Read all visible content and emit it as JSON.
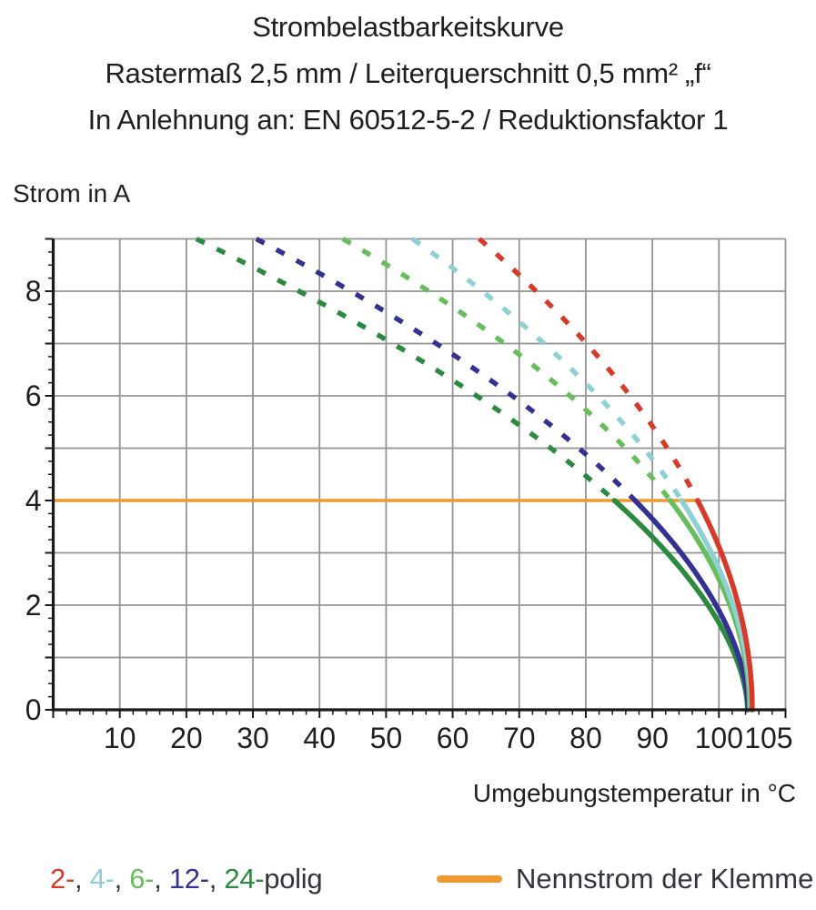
{
  "chart_data": {
    "type": "line",
    "title_lines": [
      "Strombelastbarkeitskurve",
      "Rastermaß 2,5 mm / Leiterquerschnitt 0,5 mm² „f“",
      "In Anlehnung an: EN 60512-5-2 / Reduktionsfaktor 1"
    ],
    "xlabel": "Umgebungstemperatur in °C",
    "ylabel": "Strom in A",
    "xlim": [
      0,
      110
    ],
    "ylim": [
      0,
      9
    ],
    "grid": true,
    "x_tick_values": [
      10,
      20,
      30,
      40,
      50,
      60,
      70,
      80,
      90,
      100,
      105
    ],
    "x_tick_labels": [
      "10",
      "20",
      "30",
      "40",
      "50",
      "60",
      "70",
      "80",
      "90",
      "100",
      "105"
    ],
    "x_minor_tick_step_c": 2,
    "y_tick_values": [
      0,
      2,
      4,
      6,
      8
    ],
    "y_tick_labels": [
      "0",
      "2",
      "4",
      "6",
      "8"
    ],
    "y_minor_tick_step_a": 0.25,
    "series_line_style": "dashed above nominal current (4 A), solid below",
    "nominal_current": {
      "label": "Nennstrom der Klemme",
      "value_a": 4,
      "color": "#ee9a33",
      "temp_c_end": 96.8
    },
    "series": [
      {
        "name": "2-polig",
        "legend_text": "2-",
        "color": "#d63a28",
        "temp_c_at_9a": 64.0,
        "temp_c_at_4a": 96.8,
        "temp_c_at_0a": 105.0
      },
      {
        "name": "4-polig",
        "legend_text": "4-",
        "color": "#8fd0d4",
        "temp_c_at_9a": 54.0,
        "temp_c_at_4a": 94.4,
        "temp_c_at_0a": 104.8
      },
      {
        "name": "6-polig",
        "legend_text": "6-",
        "color": "#68bd5c",
        "temp_c_at_9a": 43.5,
        "temp_c_at_4a": 92.7,
        "temp_c_at_0a": 104.6
      },
      {
        "name": "12-polig",
        "legend_text": "12-",
        "color": "#343192",
        "temp_c_at_9a": 30.5,
        "temp_c_at_4a": 87.4,
        "temp_c_at_0a": 104.4
      },
      {
        "name": "24-polig",
        "legend_text": "24-",
        "color": "#2c8a40",
        "temp_c_at_9a": 21.5,
        "temp_c_at_4a": 84.3,
        "temp_c_at_0a": 104.3
      }
    ],
    "legend_separator": ", ",
    "legend_suffix": "polig",
    "colors": {
      "grid": "#949494",
      "axis": "#1a1a1a",
      "text": "#1f1f1f"
    }
  }
}
